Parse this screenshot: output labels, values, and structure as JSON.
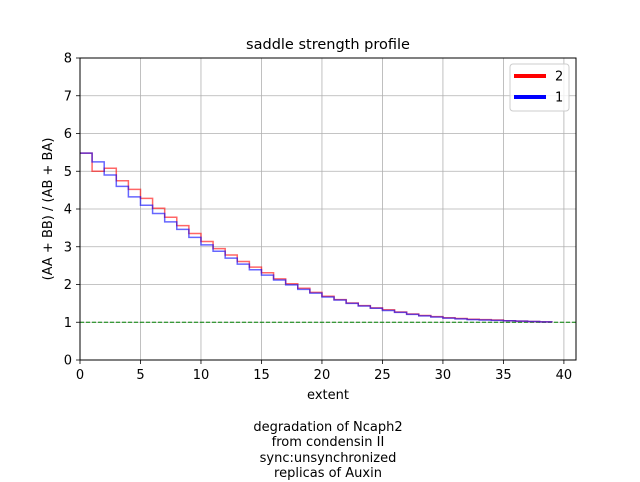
{
  "chart_data": {
    "type": "line",
    "title": "saddle strength profile",
    "xlabel": "extent",
    "ylabel": "(AA + BB) / (AB + BA)",
    "xlim": [
      0,
      41
    ],
    "ylim": [
      0,
      8
    ],
    "xticks": [
      0,
      5,
      10,
      15,
      20,
      25,
      30,
      35,
      40
    ],
    "yticks": [
      0,
      1,
      2,
      3,
      4,
      5,
      6,
      7,
      8
    ],
    "grid": true,
    "legend_position": "top-right",
    "reference_line": {
      "y": 1,
      "color": "#008000",
      "style": "dashed"
    },
    "series": [
      {
        "name": "2",
        "color": "#ff0000",
        "drawstyle": "steps-post",
        "x": [
          0,
          1,
          2,
          3,
          4,
          5,
          6,
          7,
          8,
          9,
          10,
          11,
          12,
          13,
          14,
          15,
          16,
          17,
          18,
          19,
          20,
          21,
          22,
          23,
          24,
          25,
          26,
          27,
          28,
          29,
          30,
          31,
          32,
          33,
          34,
          35,
          36,
          37,
          38,
          39
        ],
        "values": [
          5.48,
          5.0,
          5.08,
          4.75,
          4.52,
          4.28,
          4.02,
          3.78,
          3.56,
          3.35,
          3.14,
          2.95,
          2.78,
          2.61,
          2.46,
          2.31,
          2.15,
          2.02,
          1.9,
          1.79,
          1.69,
          1.6,
          1.51,
          1.44,
          1.38,
          1.33,
          1.27,
          1.22,
          1.18,
          1.15,
          1.12,
          1.1,
          1.08,
          1.07,
          1.06,
          1.04,
          1.03,
          1.02,
          1.01,
          1.0
        ]
      },
      {
        "name": "1",
        "color": "#0000ff",
        "drawstyle": "steps-post",
        "x": [
          0,
          1,
          2,
          3,
          4,
          5,
          6,
          7,
          8,
          9,
          10,
          11,
          12,
          13,
          14,
          15,
          16,
          17,
          18,
          19,
          20,
          21,
          22,
          23,
          24,
          25,
          26,
          27,
          28,
          29,
          30,
          31,
          32,
          33,
          34,
          35,
          36,
          37,
          38,
          39
        ],
        "values": [
          5.48,
          5.25,
          4.9,
          4.6,
          4.32,
          4.1,
          3.88,
          3.66,
          3.46,
          3.25,
          3.05,
          2.88,
          2.7,
          2.54,
          2.39,
          2.25,
          2.12,
          1.99,
          1.87,
          1.77,
          1.67,
          1.59,
          1.5,
          1.43,
          1.37,
          1.31,
          1.26,
          1.21,
          1.17,
          1.14,
          1.11,
          1.09,
          1.07,
          1.06,
          1.05,
          1.04,
          1.03,
          1.02,
          1.01,
          1.0
        ]
      }
    ]
  },
  "caption_lines": [
    "degradation of Ncaph2",
    "from condensin II",
    "sync:unsynchronized",
    "replicas of Auxin"
  ]
}
